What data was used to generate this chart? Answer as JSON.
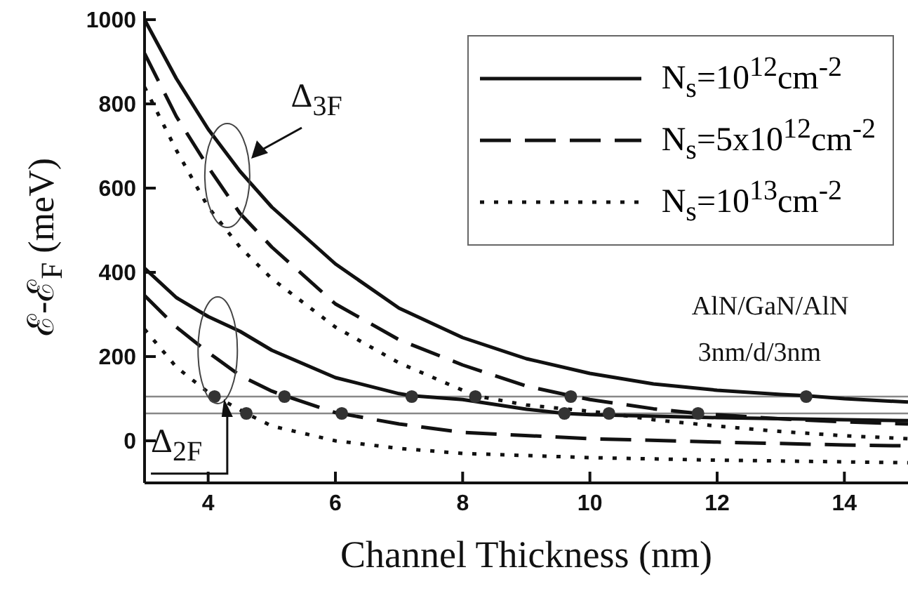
{
  "chart_data": {
    "type": "line",
    "xlabel": "Channel Thickness (nm)",
    "ylabel": "ℰ-ℰ$_{F}$ (meV)",
    "xlim": [
      3,
      15
    ],
    "xticks": [
      4,
      6,
      8,
      10,
      12,
      14
    ],
    "ylim": [
      -100,
      1020
    ],
    "yticks": [
      0,
      200,
      400,
      600,
      800,
      1000
    ],
    "legend": "top right",
    "annotations": [
      "Δ$_{3F}$",
      {
        "text": "Δ$_{2F}$",
        "x": 4.25,
        "y": 100
      },
      "AlN/GaN/AlN",
      "3nm/d/3nm"
    ],
    "ref_lines": [
      {
        "axis": "y",
        "value": 105,
        "color": "#888888"
      },
      {
        "axis": "y",
        "value": 65,
        "color": "#888888"
      }
    ],
    "series": [
      {
        "name": "N$_{s}$=10$^{12}$cm$^{-2}$",
        "color": "#111111",
        "line_style": "solid",
        "x": [
          3,
          3.5,
          4,
          4.5,
          5,
          6,
          7,
          8,
          9,
          10,
          11,
          12,
          13,
          13.4,
          14,
          15
        ],
        "values": [
          1000,
          860,
          740,
          640,
          555,
          420,
          315,
          245,
          195,
          160,
          135,
          120,
          110,
          107,
          100,
          92
        ]
      },
      {
        "name": "N$_{s}$=5x10$^{12}$cm$^{-2}$",
        "color": "#111111",
        "line_style": "dashed",
        "x": [
          3,
          3.5,
          4,
          4.5,
          5,
          6,
          7,
          8,
          9,
          9.7,
          10,
          11,
          11.7,
          13,
          14,
          15
        ],
        "values": [
          920,
          770,
          650,
          540,
          460,
          325,
          240,
          180,
          130,
          107,
          98,
          76,
          65,
          52,
          45,
          40
        ]
      },
      {
        "name": "N$_{s}$=10$^{13}$cm$^{-2}$",
        "color": "#111111",
        "line_style": "dotted",
        "x": [
          3,
          3.5,
          4,
          4.5,
          5,
          6,
          7,
          8,
          8.2,
          9,
          10,
          10.3,
          11,
          12,
          13,
          14,
          15
        ],
        "values": [
          840,
          690,
          555,
          460,
          385,
          270,
          185,
          120,
          107,
          85,
          70,
          65,
          50,
          35,
          22,
          12,
          5
        ]
      },
      {
        "color": "#111111",
        "line_style": "solid",
        "x": [
          3,
          3.5,
          4,
          4.5,
          5,
          6,
          7,
          7.2,
          8,
          9,
          9.6,
          10,
          12,
          14,
          15
        ],
        "values": [
          410,
          340,
          295,
          260,
          215,
          150,
          112,
          107,
          98,
          75,
          65,
          62,
          55,
          50,
          48
        ]
      },
      {
        "color": "#111111",
        "line_style": "dashed",
        "x": [
          3,
          3.5,
          4,
          4.5,
          5,
          5.2,
          6,
          7,
          8,
          10,
          12,
          14,
          15
        ],
        "values": [
          345,
          270,
          210,
          155,
          118,
          107,
          67,
          40,
          20,
          5,
          -3,
          -10,
          -12
        ]
      },
      {
        "color": "#111111",
        "line_style": "dotted",
        "x": [
          3,
          3.5,
          4,
          4.1,
          4.6,
          5,
          6,
          7,
          8,
          10,
          12,
          14,
          15
        ],
        "values": [
          265,
          175,
          115,
          107,
          65,
          35,
          0,
          -18,
          -30,
          -40,
          -46,
          -50,
          -52
        ]
      },
      {
        "type": "scatter",
        "marker": "circle",
        "color": "#333333",
        "x": [
          4.1,
          5.2,
          7.2,
          8.2,
          9.7,
          13.4,
          4.6,
          6.1,
          9.6,
          10.3,
          11.7
        ],
        "values": [
          105,
          105,
          105,
          105,
          105,
          105,
          65,
          65,
          65,
          65,
          65
        ]
      }
    ]
  }
}
